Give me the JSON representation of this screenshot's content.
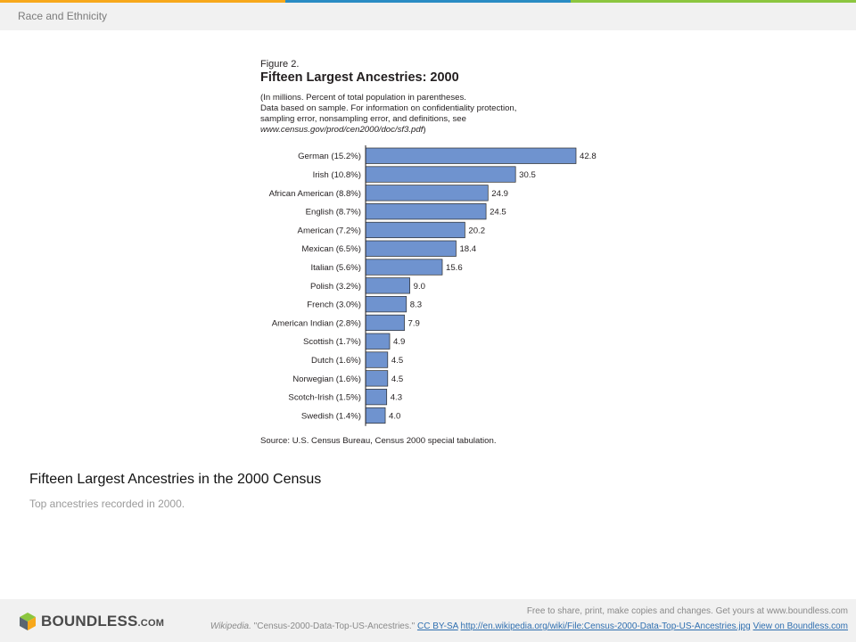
{
  "header": {
    "title": "Race and Ethnicity",
    "stripe_colors": [
      "#f7a81b",
      "#2a8cc4",
      "#8cc63f"
    ]
  },
  "figure": {
    "label": "Figure 2.",
    "heading_color": "#1a4f8f",
    "bar_color": "#6f93cf",
    "note_lines": [
      "(In millions. Percent of total population in parentheses.",
      "Data based on sample.  For information on confidentiality protection,",
      "sampling error, nonsampling error, and definitions, see"
    ],
    "note_url": "www.census.gov/prod/cen2000/doc/sf3.pdf",
    "note_url_suffix": ")",
    "source": "Source:  U.S. Census Bureau, Census 2000 special tabulation."
  },
  "chart_data": {
    "type": "bar",
    "orientation": "horizontal",
    "title": "Fifteen Largest Ancestries: 2000",
    "categories": [
      "German (15.2%)",
      "Irish (10.8%)",
      "African American (8.8%)",
      "English (8.7%)",
      "American (7.2%)",
      "Mexican (6.5%)",
      "Italian (5.6%)",
      "Polish (3.2%)",
      "French (3.0%)",
      "American Indian (2.8%)",
      "Scottish (1.7%)",
      "Dutch (1.6%)",
      "Norwegian (1.6%)",
      "Scotch-Irish (1.5%)",
      "Swedish  (1.4%)"
    ],
    "values": [
      42.8,
      30.5,
      24.9,
      24.5,
      20.2,
      18.4,
      15.6,
      9.0,
      8.3,
      7.9,
      4.9,
      4.5,
      4.5,
      4.3,
      4.0
    ],
    "value_labels": [
      "42.8",
      "30.5",
      "24.9",
      "24.5",
      "20.2",
      "18.4",
      "15.6",
      "9.0",
      "8.3",
      "7.9",
      "4.9",
      "4.5",
      "4.5",
      "4.3",
      "4.0"
    ],
    "xlim": [
      0,
      42.8
    ],
    "grid": false,
    "legend": "none"
  },
  "caption": {
    "title": "Fifteen Largest Ancestries in the 2000 Census",
    "subtitle": "Top ancestries recorded in 2000."
  },
  "footer": {
    "logo_main": "BOUNDLESS",
    "logo_suffix": ".COM",
    "free_text": "Free to share, print, make copies and changes. Get yours at www.boundless.com",
    "source_name": "Wikipedia.",
    "source_title": "\"Census-2000-Data-Top-US-Ancestries.\"",
    "license": "CC BY-SA",
    "url": "http://en.wikipedia.org/wiki/File:Census-2000-Data-Top-US-Ancestries.jpg",
    "view_link": "View on Boundless.com"
  }
}
